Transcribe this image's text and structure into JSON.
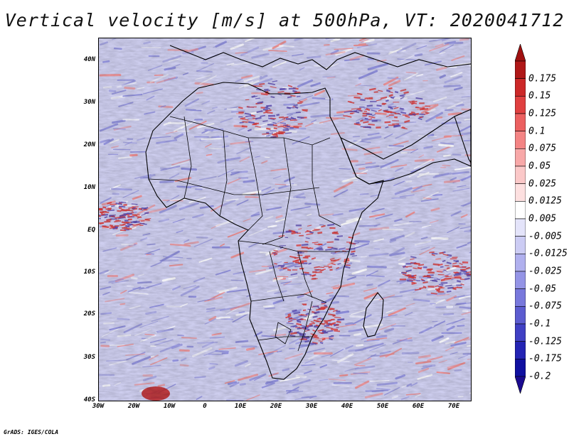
{
  "title": "Vertical velocity [m/s] at 500hPa, VT: 2020041712",
  "footer": "GrADS: IGES/COLA",
  "lat_labels": [
    "40N",
    "30N",
    "20N",
    "10N",
    "EQ",
    "10S",
    "20S",
    "30S",
    "40S"
  ],
  "lon_labels": [
    "30W",
    "20W",
    "10W",
    "0",
    "10E",
    "20E",
    "30E",
    "40E",
    "50E",
    "60E",
    "70E"
  ],
  "colorbar": {
    "labels": [
      "0.175",
      "0.15",
      "0.125",
      "0.1",
      "0.075",
      "0.05",
      "0.025",
      "0.0125",
      "0.005",
      "-0.005",
      "-0.0125",
      "-0.025",
      "-0.05",
      "-0.075",
      "-0.1",
      "-0.125",
      "-0.175",
      "-0.2"
    ],
    "colors": [
      "#b01818",
      "#cc2828",
      "#e04040",
      "#ec6060",
      "#f48484",
      "#f8a8a8",
      "#fbc8c8",
      "#fde0e0",
      "#ffffff",
      "#e4e4fa",
      "#ccccf4",
      "#b0b0ee",
      "#9494e6",
      "#7878dc",
      "#5c5cd0",
      "#4040c4",
      "#2424b4",
      "#1010a0"
    ],
    "top_triangle_color": "#a01010",
    "bottom_triangle_color": "#1a0a90"
  },
  "palette": {
    "ocean_base": "#cfcff0",
    "blue_streak": "#8c8cdc",
    "red_streak": "#f08a8a",
    "coastline": "#000000"
  }
}
